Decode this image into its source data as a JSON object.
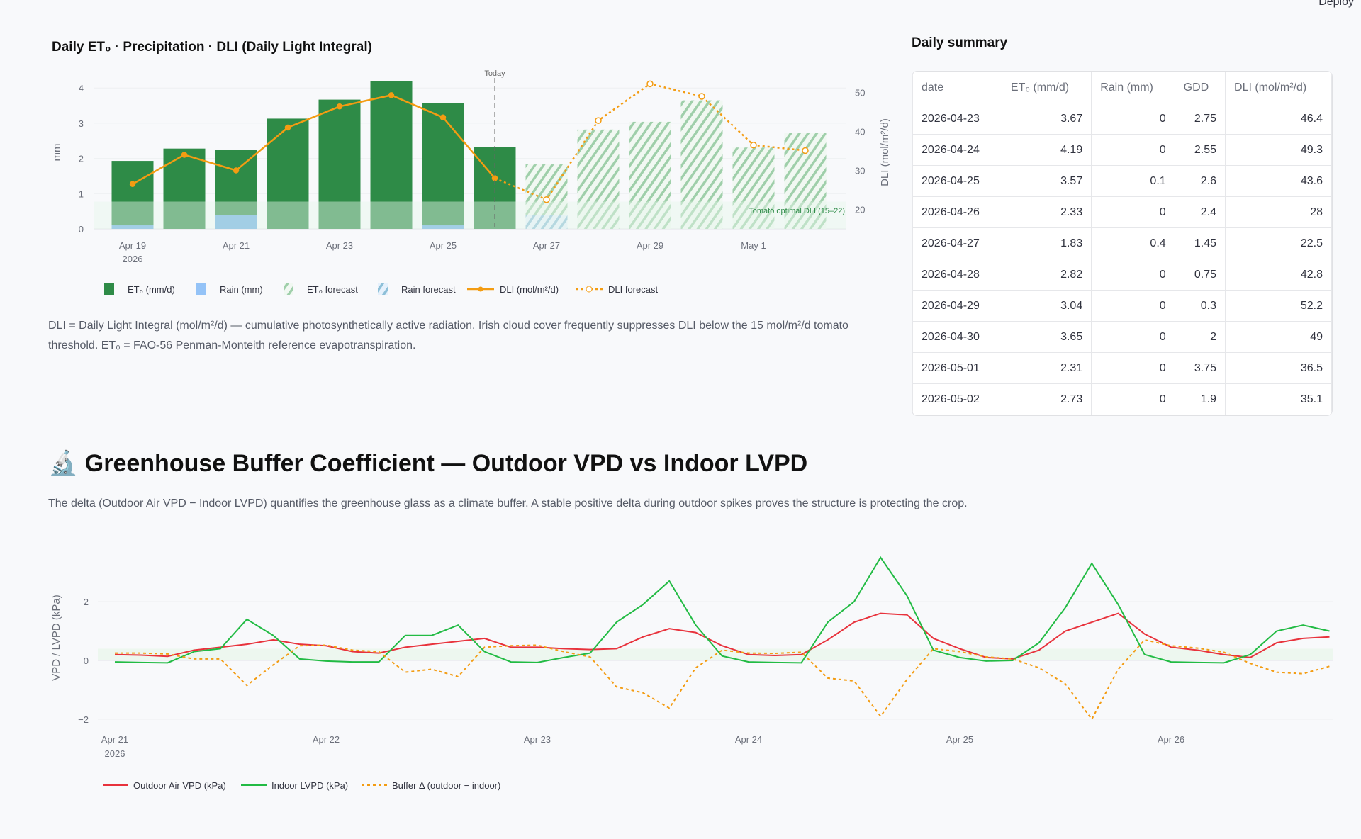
{
  "header": {
    "deploy_label": "Deploy"
  },
  "top_chart_title": "Daily ET₀ · Precipitation · DLI (Daily Light Integral)",
  "top_caption": "DLI = Daily Light Integral (mol/m²/d) — cumulative photosynthetically active radiation. Irish cloud cover frequently suppresses DLI below the 15 mol/m²/d tomato threshold. ET₀ = FAO-56 Penman-Monteith reference evapotranspiration.",
  "summary": {
    "title": "Daily summary",
    "columns": [
      "date",
      "ET₀ (mm/d)",
      "Rain (mm)",
      "GDD",
      "DLI (mol/m²/d)"
    ],
    "rows": [
      [
        "2026-04-23",
        "3.67",
        "0",
        "2.75",
        "46.4"
      ],
      [
        "2026-04-24",
        "4.19",
        "0",
        "2.55",
        "49.3"
      ],
      [
        "2026-04-25",
        "3.57",
        "0.1",
        "2.6",
        "43.6"
      ],
      [
        "2026-04-26",
        "2.33",
        "0",
        "2.4",
        "28"
      ],
      [
        "2026-04-27",
        "1.83",
        "0.4",
        "1.45",
        "22.5"
      ],
      [
        "2026-04-28",
        "2.82",
        "0",
        "0.75",
        "42.8"
      ],
      [
        "2026-04-29",
        "3.04",
        "0",
        "0.3",
        "52.2"
      ],
      [
        "2026-04-30",
        "3.65",
        "0",
        "2",
        "49"
      ],
      [
        "2026-05-01",
        "2.31",
        "0",
        "3.75",
        "36.5"
      ],
      [
        "2026-05-02",
        "2.73",
        "0",
        "1.9",
        "35.1"
      ]
    ]
  },
  "section2": {
    "icon": "microscope-icon",
    "heading": "🔬 Greenhouse Buffer Coefficient — Outdoor VPD vs Indoor LVPD",
    "caption": "The delta (Outdoor Air VPD − Indoor LVPD) quantifies the greenhouse glass as a climate buffer. A stable positive delta during outdoor spikes proves the structure is protecting the crop."
  },
  "chart_data": [
    {
      "type": "bar",
      "title": "Daily ET₀ · Precipitation · DLI (Daily Light Integral)",
      "categories": [
        "Apr 19",
        "Apr 20",
        "Apr 21",
        "Apr 22",
        "Apr 23",
        "Apr 24",
        "Apr 25",
        "Apr 26",
        "Apr 27",
        "Apr 28",
        "Apr 29",
        "Apr 30",
        "May 1",
        "May 2"
      ],
      "xticks": [
        "Apr 19",
        "Apr 21",
        "Apr 23",
        "Apr 25",
        "Apr 27",
        "Apr 29",
        "May 1"
      ],
      "xtick_year": "2026",
      "forecast_from_index": 8,
      "today_label": "Today",
      "ylabel": "mm",
      "ylim": [
        0,
        4.3
      ],
      "yticks": [
        "0",
        "1",
        "2",
        "3",
        "4"
      ],
      "y2label": "DLI (mol/m²/d)",
      "y2lim": [
        15,
        55
      ],
      "y2ticks": [
        "20",
        "30",
        "40",
        "50"
      ],
      "band": {
        "label": "Tomato optimal DLI (15–22)",
        "range": [
          15,
          22
        ],
        "color": "#e3f5e6"
      },
      "series": [
        {
          "name": "ET₀ (mm/d)",
          "axis": "y",
          "color": "#2e8b47",
          "values": [
            1.93,
            2.28,
            2.25,
            3.13,
            3.67,
            4.19,
            3.57,
            2.33,
            1.83,
            2.82,
            3.04,
            3.65,
            2.31,
            2.73
          ]
        },
        {
          "name": "Rain (mm)",
          "axis": "y",
          "color": "#7fb6f0",
          "values": [
            0.1,
            0,
            0.4,
            0,
            0,
            0,
            0.1,
            0,
            0.4,
            0,
            0,
            0,
            0,
            0
          ]
        },
        {
          "name": "DLI (mol/m²/d)",
          "axis": "y2",
          "color": "#f39c12",
          "values": [
            26.5,
            34,
            30,
            41,
            46.4,
            49.3,
            43.6,
            28,
            22.5,
            42.8,
            52.2,
            49,
            36.5,
            35.1
          ]
        }
      ],
      "legend": [
        "ET₀ (mm/d)",
        "Rain (mm)",
        "ET₀ forecast",
        "Rain forecast",
        "DLI (mol/m²/d)",
        "DLI forecast"
      ],
      "legend_placement": "bottom"
    },
    {
      "type": "line",
      "ylabel": "VPD / LVPD (kPa)",
      "ylim": [
        -2.5,
        3.7
      ],
      "yticks": [
        "−2",
        "0",
        "2"
      ],
      "xticks": [
        "Apr 21",
        "Apr 22",
        "Apr 23",
        "Apr 24",
        "Apr 25",
        "Apr 26"
      ],
      "xtick_year": "2026",
      "band": {
        "range": [
          0,
          0.4
        ],
        "color": "#e8f6ea"
      },
      "hours_from_apr21": [
        0,
        3,
        6,
        9,
        12,
        15,
        18,
        21,
        24,
        27,
        30,
        33,
        36,
        39,
        42,
        45,
        48,
        51,
        54,
        57,
        60,
        63,
        66,
        69,
        72,
        75,
        78,
        81,
        84,
        87,
        90,
        93,
        96,
        99,
        102,
        105,
        108,
        111,
        114,
        117,
        120,
        123,
        126,
        129,
        132,
        135,
        138
      ],
      "series": [
        {
          "name": "Outdoor Air VPD (kPa)",
          "color": "#e8323c",
          "dash": false,
          "values": [
            0.2,
            0.18,
            0.14,
            0.35,
            0.45,
            0.55,
            0.7,
            0.55,
            0.5,
            0.3,
            0.25,
            0.45,
            0.55,
            0.65,
            0.75,
            0.45,
            0.45,
            0.4,
            0.37,
            0.4,
            0.8,
            1.08,
            0.95,
            0.5,
            0.2,
            0.17,
            0.2,
            0.7,
            1.3,
            1.6,
            1.55,
            0.75,
            0.4,
            0.1,
            0.05,
            0.35,
            1.0,
            1.3,
            1.6,
            0.9,
            0.45,
            0.35,
            0.2,
            0.1,
            0.6,
            0.75,
            0.8
          ]
        },
        {
          "name": "Indoor LVPD (kPa)",
          "color": "#22bb44",
          "dash": false,
          "values": [
            -0.05,
            -0.07,
            -0.08,
            0.3,
            0.4,
            1.4,
            0.85,
            0.05,
            -0.02,
            -0.05,
            -0.05,
            0.85,
            0.85,
            1.2,
            0.3,
            -0.05,
            -0.07,
            0.1,
            0.25,
            1.3,
            1.9,
            2.7,
            1.2,
            0.15,
            -0.05,
            -0.07,
            -0.08,
            1.3,
            2.0,
            3.5,
            2.2,
            0.35,
            0.1,
            -0.02,
            0.0,
            0.6,
            1.8,
            3.3,
            1.9,
            0.2,
            -0.05,
            -0.07,
            -0.08,
            0.2,
            1.0,
            1.2,
            1.0
          ]
        },
        {
          "name": "Buffer Δ (outdoor − indoor)",
          "color": "#f39c12",
          "dash": true,
          "values": [
            0.25,
            0.25,
            0.22,
            0.05,
            0.05,
            -0.85,
            -0.15,
            0.5,
            0.52,
            0.35,
            0.3,
            -0.4,
            -0.3,
            -0.55,
            0.45,
            0.5,
            0.52,
            0.3,
            0.12,
            -0.9,
            -1.1,
            -1.62,
            -0.25,
            0.35,
            0.25,
            0.24,
            0.28,
            -0.6,
            -0.7,
            -1.9,
            -0.65,
            0.4,
            0.3,
            0.12,
            0.05,
            -0.25,
            -0.8,
            -2.0,
            -0.3,
            0.7,
            0.5,
            0.42,
            0.28,
            -0.1,
            -0.4,
            -0.45,
            -0.2
          ]
        }
      ],
      "legend_placement": "bottom"
    }
  ]
}
